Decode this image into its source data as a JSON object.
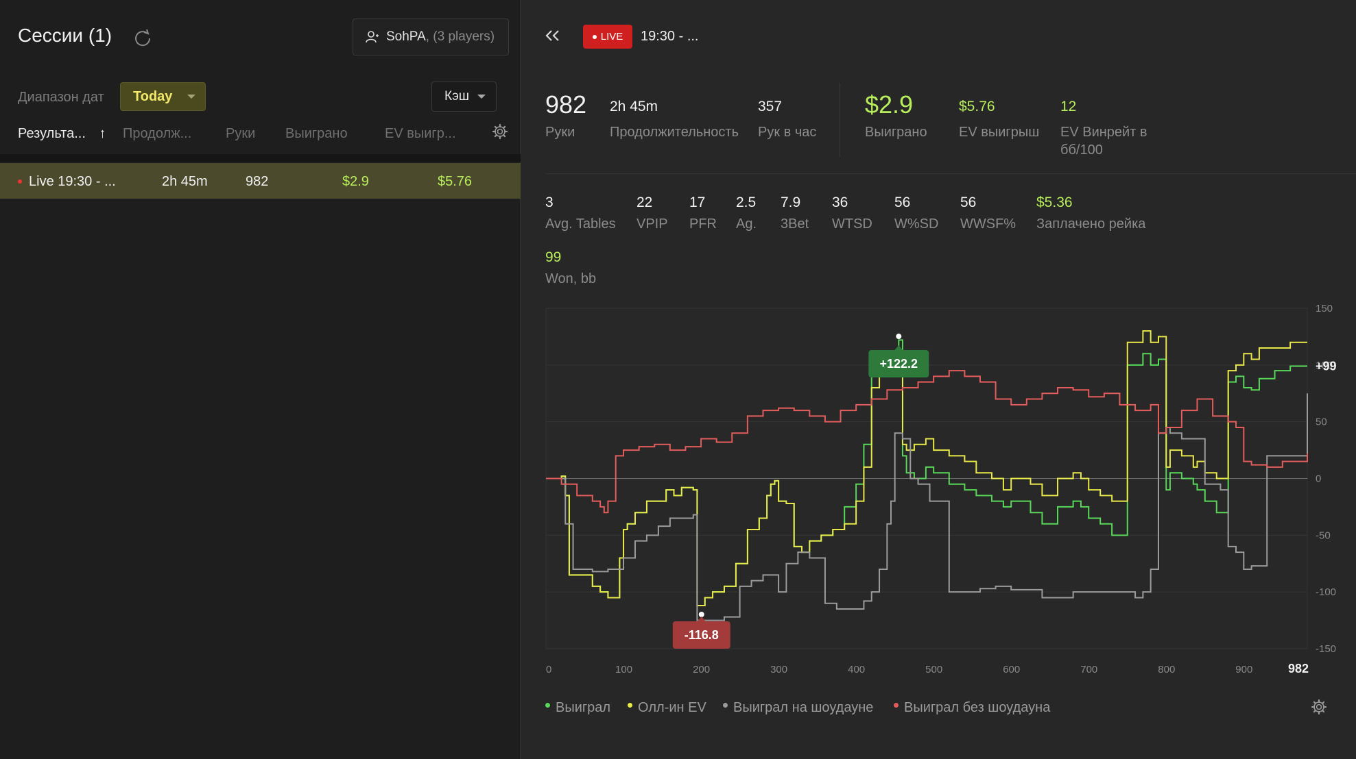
{
  "left": {
    "title": "Сессии (1)",
    "player": {
      "name": "SohPA",
      "extra": ", (3 players)"
    },
    "date_label": "Диапазон дат",
    "date_value": "Today",
    "game_type": "Кэш",
    "columns": [
      "Результа...",
      "Продолж...",
      "Руки",
      "Выиграно",
      "EV выигр..."
    ],
    "sort_arrow": "↑",
    "rows": [
      {
        "name": "Live 19:30 - ...",
        "duration": "2h 45m",
        "hands": "982",
        "won": "$2.9",
        "ev_won": "$5.76"
      }
    ]
  },
  "header": {
    "live_label": "LIVE",
    "session_time": "19:30 - ..."
  },
  "stats_top": [
    {
      "value": "982",
      "label": "Руки"
    },
    {
      "value": "2h 45m",
      "label": "Продолжительность"
    },
    {
      "value": "357",
      "label": "Рук в час"
    },
    {
      "value": "$2.9",
      "label": "Выиграно"
    },
    {
      "value": "$5.76",
      "label": "EV выигрыш"
    },
    {
      "value": "12",
      "label": "EV Винрейт в бб/100"
    }
  ],
  "stats_row2": [
    {
      "value": "3",
      "label": "Avg. Tables"
    },
    {
      "value": "22",
      "label": "VPIP"
    },
    {
      "value": "17",
      "label": "PFR"
    },
    {
      "value": "2.5",
      "label": "Ag."
    },
    {
      "value": "7.9",
      "label": "3Bet"
    },
    {
      "value": "36",
      "label": "WTSD"
    },
    {
      "value": "56",
      "label": "W%SD"
    },
    {
      "value": "56",
      "label": "WWSF%"
    },
    {
      "value": "$5.36",
      "label": "Заплачено рейка"
    }
  ],
  "stats_row3": [
    {
      "value": "99",
      "label": "Won, bb"
    }
  ],
  "colors": {
    "won": "#58d858",
    "allin_ev": "#e9e94a",
    "showdown": "#9b9b9b",
    "non_showdown": "#e45c5c",
    "accent_green": "#b8ee5c",
    "live_red": "#d01f1f"
  },
  "chart_data": {
    "type": "line",
    "xlabel": "",
    "ylabel": "",
    "xlim": [
      0,
      982
    ],
    "ylim": [
      -150,
      150
    ],
    "x_ticks": [
      "0",
      "100",
      "200",
      "300",
      "400",
      "500",
      "600",
      "700",
      "800",
      "900",
      "982"
    ],
    "y_ticks": [
      "150",
      "100",
      "50",
      "0",
      "-50",
      "-100",
      "-150"
    ],
    "end_label": "+99",
    "max_label": {
      "x": 455,
      "y": 122.2,
      "text": "+122.2"
    },
    "min_label": {
      "x": 190,
      "y": -116.8,
      "text": "-116.8"
    },
    "series": [
      {
        "name": "Выиграл",
        "color": "#58d858",
        "x": [
          0,
          20,
          25,
          30,
          60,
          70,
          80,
          95,
          100,
          105,
          115,
          130,
          145,
          155,
          165,
          175,
          190,
          195,
          205,
          215,
          230,
          245,
          260,
          275,
          285,
          290,
          295,
          300,
          310,
          320,
          330,
          340,
          355,
          370,
          385,
          400,
          410,
          420,
          430,
          440,
          445,
          455,
          460,
          465,
          475,
          490,
          500,
          520,
          540,
          555,
          575,
          590,
          600,
          625,
          640,
          660,
          680,
          690,
          700,
          715,
          730,
          750,
          770,
          780,
          790,
          800,
          805,
          820,
          835,
          840,
          850,
          865,
          880,
          890,
          900,
          910,
          920,
          940,
          960,
          982
        ],
        "y": [
          0,
          2,
          -15,
          -85,
          -95,
          -100,
          -105,
          -70,
          -45,
          -40,
          -30,
          -20,
          -20,
          -10,
          -15,
          -8,
          -10,
          -112,
          -105,
          -100,
          -95,
          -75,
          -45,
          -35,
          -15,
          -5,
          -2,
          -20,
          -22,
          -60,
          -65,
          -55,
          -50,
          -45,
          -25,
          -5,
          30,
          90,
          95,
          100,
          110,
          122,
          20,
          5,
          0,
          10,
          5,
          -5,
          -10,
          -15,
          -20,
          -25,
          -20,
          -30,
          -40,
          -25,
          -20,
          -25,
          -35,
          -40,
          -50,
          100,
          110,
          100,
          105,
          -10,
          5,
          0,
          -5,
          -10,
          -20,
          -30,
          85,
          90,
          80,
          78,
          88,
          95,
          99,
          99
        ]
      },
      {
        "name": "Олл-ин EV",
        "color": "#e9e94a",
        "x": [
          0,
          20,
          25,
          30,
          60,
          70,
          80,
          95,
          100,
          105,
          115,
          130,
          145,
          155,
          165,
          175,
          190,
          195,
          205,
          215,
          230,
          245,
          260,
          275,
          285,
          290,
          295,
          300,
          310,
          320,
          330,
          340,
          355,
          370,
          385,
          400,
          410,
          420,
          430,
          440,
          445,
          455,
          460,
          465,
          475,
          490,
          500,
          520,
          540,
          555,
          575,
          590,
          600,
          625,
          640,
          660,
          680,
          690,
          700,
          715,
          730,
          750,
          770,
          780,
          790,
          800,
          805,
          820,
          835,
          840,
          850,
          865,
          880,
          890,
          900,
          910,
          920,
          940,
          960,
          982
        ],
        "y": [
          0,
          2,
          -15,
          -85,
          -95,
          -100,
          -105,
          -70,
          -45,
          -40,
          -30,
          -20,
          -20,
          -10,
          -15,
          -8,
          -10,
          -112,
          -105,
          -100,
          -95,
          -75,
          -45,
          -35,
          -15,
          -5,
          -2,
          -20,
          -22,
          -60,
          -65,
          -55,
          -50,
          -45,
          -40,
          -20,
          10,
          80,
          90,
          95,
          100,
          105,
          30,
          25,
          30,
          35,
          25,
          20,
          15,
          5,
          0,
          -10,
          0,
          -5,
          -15,
          0,
          5,
          0,
          -10,
          -15,
          -20,
          120,
          130,
          120,
          125,
          10,
          25,
          20,
          10,
          15,
          5,
          0,
          95,
          100,
          110,
          105,
          115,
          115,
          120,
          120
        ]
      },
      {
        "name": "Выиграл на шоудауне",
        "color": "#9b9b9b",
        "x": [
          0,
          15,
          25,
          35,
          60,
          80,
          100,
          115,
          130,
          145,
          160,
          190,
          195,
          225,
          230,
          250,
          265,
          280,
          300,
          310,
          325,
          340,
          360,
          375,
          390,
          400,
          410,
          420,
          430,
          440,
          445,
          450,
          460,
          470,
          480,
          495,
          520,
          560,
          580,
          600,
          640,
          680,
          720,
          760,
          770,
          780,
          790,
          800,
          805,
          820,
          850,
          870,
          880,
          890,
          900,
          910,
          930,
          982
        ],
        "y": [
          0,
          0,
          -40,
          -80,
          -82,
          -80,
          -70,
          -55,
          -50,
          -42,
          -35,
          -32,
          -125,
          -125,
          -122,
          -95,
          -90,
          -85,
          -100,
          -75,
          -65,
          -70,
          -110,
          -115,
          -115,
          -115,
          -108,
          -100,
          -80,
          -40,
          -20,
          40,
          35,
          0,
          -5,
          -20,
          -100,
          -97,
          -95,
          -98,
          -105,
          -100,
          -100,
          -105,
          -100,
          -80,
          40,
          45,
          40,
          35,
          -5,
          -10,
          -60,
          -65,
          -80,
          -77,
          20,
          75
        ]
      },
      {
        "name": "Выиграл без шоудауна",
        "color": "#e45c5c",
        "x": [
          0,
          20,
          40,
          60,
          70,
          75,
          80,
          90,
          100,
          120,
          140,
          160,
          180,
          200,
          220,
          240,
          260,
          280,
          300,
          320,
          340,
          360,
          380,
          400,
          420,
          440,
          460,
          480,
          500,
          520,
          540,
          560,
          580,
          600,
          620,
          640,
          660,
          680,
          700,
          720,
          740,
          760,
          780,
          790,
          800,
          820,
          840,
          860,
          880,
          890,
          900,
          910,
          930,
          950,
          982
        ],
        "y": [
          0,
          -5,
          -15,
          -20,
          -25,
          -30,
          -20,
          20,
          25,
          28,
          30,
          25,
          28,
          35,
          32,
          40,
          55,
          60,
          62,
          60,
          55,
          50,
          60,
          65,
          70,
          78,
          80,
          85,
          90,
          95,
          90,
          85,
          70,
          65,
          70,
          75,
          80,
          78,
          72,
          75,
          65,
          60,
          65,
          40,
          45,
          60,
          70,
          55,
          50,
          45,
          15,
          12,
          10,
          15,
          22
        ]
      }
    ]
  },
  "legend": [
    "Выиграл",
    "Олл-ин EV",
    "Выиграл на шоудауне",
    "Выиграл без шоудауна"
  ]
}
